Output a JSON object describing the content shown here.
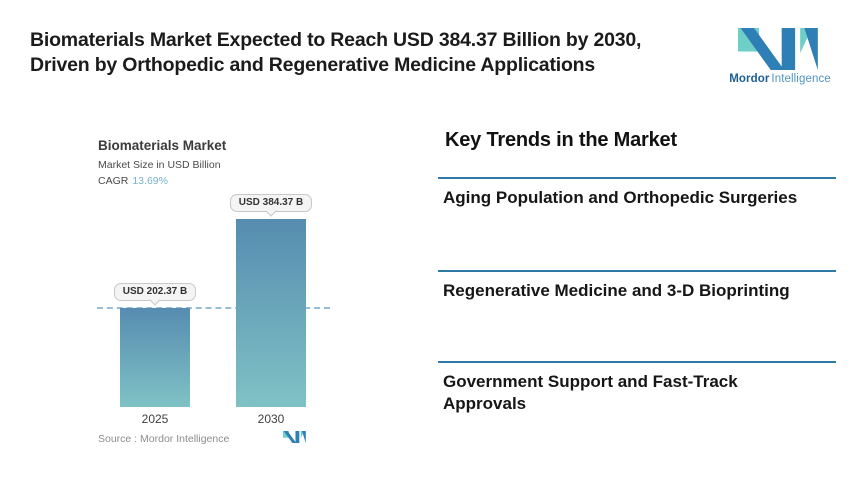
{
  "header": {
    "title_line1": "Biomaterials Market Expected to Reach USD 384.37 Billion by 2030,",
    "title_line2": "Driven by Orthopedic and Regenerative Medicine Applications"
  },
  "brand": {
    "name_bold": "Mordor",
    "name_light": "Intelligence"
  },
  "chart": {
    "title": "Biomaterials Market",
    "subtitle": "Market Size in USD Billion",
    "cagr_label": "CAGR",
    "cagr_value": "13.69%",
    "source": "Source :  Mordor Intelligence"
  },
  "chart_data": {
    "type": "bar",
    "title": "Biomaterials Market",
    "ylabel": "Market Size in USD Billion",
    "categories": [
      "2025",
      "2030"
    ],
    "values": [
      202.37,
      384.37
    ],
    "value_labels": [
      "USD 202.37 B",
      "USD 384.37 B"
    ],
    "cagr_percent": 13.69,
    "reference_line_value": 202.37,
    "ylim": [
      0,
      384.37
    ],
    "grid": false,
    "legend": "none"
  },
  "trends": {
    "heading": "Key Trends in the Market",
    "items": [
      {
        "label": "Aging Population and Orthopedic Surgeries"
      },
      {
        "label": "Regenerative Medicine and 3-D Bioprinting"
      },
      {
        "label": "Government Support and Fast-Track Approvals"
      }
    ]
  },
  "colors": {
    "logo-teal": "#6ecfc9",
    "logo-blue": "#2e7fb5",
    "logo-darkblue": "#1c5e94",
    "logo-midblue": "#5096c0",
    "bar-top": "#568cb0",
    "bar-bottom": "#7fc2c5",
    "dash-color": "#9abdd6",
    "line-color": "#2e7ba6",
    "cagr-color": "#79b1cb"
  }
}
